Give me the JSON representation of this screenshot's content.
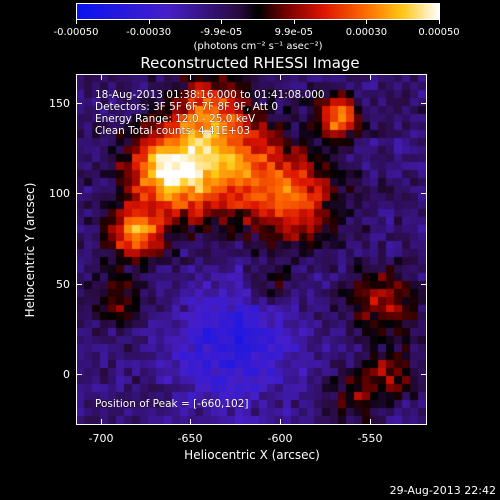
{
  "colorbar": {
    "tick_labels": [
      "-0.00050",
      "-0.00030",
      "-9.9e-05",
      "9.9e-05",
      "0.00030",
      "0.00050"
    ],
    "unit": "(photons cm⁻² s⁻¹ asec⁻²)",
    "range": [
      -0.0005,
      0.0005
    ]
  },
  "plot": {
    "title": "Reconstructed RHESSI Image",
    "annotations": [
      "18-Aug-2013 01:38:16.000 to 01:41:08.000",
      "Detectors: 3F 5F 6F 7F 8F 9F, Att 0",
      "Energy Range: 12.0 - 25.0 keV",
      "Clean    Total counts: 4.41E+03"
    ],
    "peak_text": "Position of Peak = [-660,102]",
    "xlabel": "Heliocentric X (arcsec)",
    "ylabel": "Heliocentric Y (arcsec)",
    "x_ticks": [
      "-700",
      "-650",
      "-600",
      "-550"
    ],
    "y_ticks": [
      "150",
      "100",
      "50",
      "0"
    ],
    "x_range": [
      -713,
      -517
    ],
    "y_range": [
      -29,
      167
    ]
  },
  "footer": {
    "timestamp": "29-Aug-2013 22:42"
  },
  "colors": {
    "background": "#000000",
    "foreground": "#ffffff"
  }
}
